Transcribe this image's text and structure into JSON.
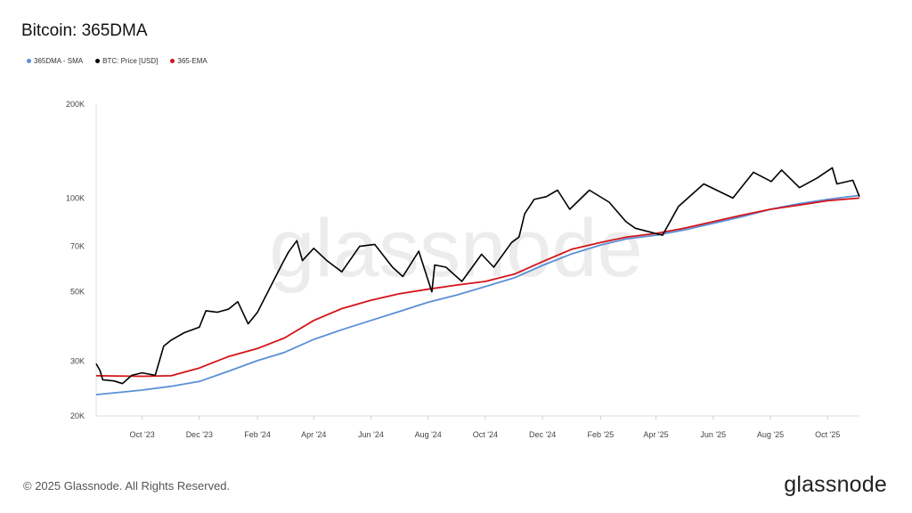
{
  "header": {
    "title": "Bitcoin: 365DMA"
  },
  "footer": {
    "copyright": "© 2025 Glassnode. All Rights Reserved.",
    "logo": "glassnode",
    "watermark": "glassnode"
  },
  "chart_data": {
    "type": "line",
    "title": "Bitcoin: 365DMA",
    "yscale": "log",
    "ylim": [
      20000,
      200000
    ],
    "xlim": [
      "2023-08-13",
      "2025-11-04"
    ],
    "yticks": [
      {
        "v": 20000,
        "label": "20K"
      },
      {
        "v": 30000,
        "label": "30K"
      },
      {
        "v": 50000,
        "label": "50K"
      },
      {
        "v": 70000,
        "label": "70K"
      },
      {
        "v": 100000,
        "label": "100K"
      },
      {
        "v": 200000,
        "label": "200K"
      }
    ],
    "xticks": [
      {
        "d": "2023-10-01",
        "label": "Oct '23"
      },
      {
        "d": "2023-12-01",
        "label": "Dec '23"
      },
      {
        "d": "2024-02-01",
        "label": "Feb '24"
      },
      {
        "d": "2024-04-01",
        "label": "Apr '24"
      },
      {
        "d": "2024-06-01",
        "label": "Jun '24"
      },
      {
        "d": "2024-08-01",
        "label": "Aug '24"
      },
      {
        "d": "2024-10-01",
        "label": "Oct '24"
      },
      {
        "d": "2024-12-01",
        "label": "Dec '24"
      },
      {
        "d": "2025-02-01",
        "label": "Feb '25"
      },
      {
        "d": "2025-04-01",
        "label": "Apr '25"
      },
      {
        "d": "2025-06-01",
        "label": "Jun '25"
      },
      {
        "d": "2025-08-01",
        "label": "Aug '25"
      },
      {
        "d": "2025-10-01",
        "label": "Oct '25"
      }
    ],
    "legend_position": "top-left",
    "grid": false,
    "series": [
      {
        "name": "365DMA - SMA",
        "color": "#5b8fd6",
        "points": [
          [
            "2023-08-13",
            23400
          ],
          [
            "2023-10-01",
            24200
          ],
          [
            "2023-11-01",
            24900
          ],
          [
            "2023-12-01",
            25800
          ],
          [
            "2024-01-01",
            27800
          ],
          [
            "2024-02-01",
            30100
          ],
          [
            "2024-03-01",
            32000
          ],
          [
            "2024-04-01",
            35200
          ],
          [
            "2024-05-01",
            37800
          ],
          [
            "2024-06-01",
            40500
          ],
          [
            "2024-07-01",
            43200
          ],
          [
            "2024-08-01",
            46300
          ],
          [
            "2024-09-01",
            48900
          ],
          [
            "2024-10-01",
            52000
          ],
          [
            "2024-11-01",
            55500
          ],
          [
            "2024-12-01",
            60800
          ],
          [
            "2025-01-01",
            66200
          ],
          [
            "2025-02-01",
            70700
          ],
          [
            "2025-03-01",
            74000
          ],
          [
            "2025-04-01",
            76000
          ],
          [
            "2025-05-01",
            79000
          ],
          [
            "2025-06-01",
            83000
          ],
          [
            "2025-07-01",
            87000
          ],
          [
            "2025-08-01",
            92000
          ],
          [
            "2025-09-01",
            96000
          ],
          [
            "2025-10-01",
            99000
          ],
          [
            "2025-11-04",
            102000
          ]
        ]
      },
      {
        "name": "BTC: Price [USD]",
        "color": "#000000",
        "points": [
          [
            "2023-08-13",
            29400
          ],
          [
            "2023-08-17",
            28000
          ],
          [
            "2023-08-20",
            26100
          ],
          [
            "2023-09-01",
            25900
          ],
          [
            "2023-09-10",
            25400
          ],
          [
            "2023-09-20",
            27000
          ],
          [
            "2023-10-01",
            27500
          ],
          [
            "2023-10-15",
            27000
          ],
          [
            "2023-10-24",
            33500
          ],
          [
            "2023-11-01",
            35000
          ],
          [
            "2023-11-15",
            37000
          ],
          [
            "2023-12-01",
            38500
          ],
          [
            "2023-12-08",
            43500
          ],
          [
            "2023-12-20",
            43000
          ],
          [
            "2024-01-01",
            44000
          ],
          [
            "2024-01-11",
            46500
          ],
          [
            "2024-01-22",
            39500
          ],
          [
            "2024-02-01",
            43000
          ],
          [
            "2024-02-15",
            52000
          ],
          [
            "2024-02-28",
            62000
          ],
          [
            "2024-03-05",
            67000
          ],
          [
            "2024-03-14",
            73000
          ],
          [
            "2024-03-20",
            63000
          ],
          [
            "2024-04-01",
            69000
          ],
          [
            "2024-04-15",
            63000
          ],
          [
            "2024-05-01",
            58000
          ],
          [
            "2024-05-20",
            70000
          ],
          [
            "2024-06-05",
            71000
          ],
          [
            "2024-06-24",
            60000
          ],
          [
            "2024-07-05",
            56000
          ],
          [
            "2024-07-22",
            67500
          ],
          [
            "2024-08-05",
            50000
          ],
          [
            "2024-08-08",
            61000
          ],
          [
            "2024-08-20",
            60000
          ],
          [
            "2024-09-06",
            54000
          ],
          [
            "2024-09-27",
            66000
          ],
          [
            "2024-10-10",
            60000
          ],
          [
            "2024-10-29",
            72000
          ],
          [
            "2024-11-06",
            75000
          ],
          [
            "2024-11-12",
            89000
          ],
          [
            "2024-11-22",
            99000
          ],
          [
            "2024-12-05",
            101000
          ],
          [
            "2024-12-17",
            106000
          ],
          [
            "2024-12-30",
            92000
          ],
          [
            "2025-01-20",
            106000
          ],
          [
            "2025-02-10",
            97000
          ],
          [
            "2025-02-28",
            84000
          ],
          [
            "2025-03-10",
            80000
          ],
          [
            "2025-04-08",
            76000
          ],
          [
            "2025-04-25",
            94000
          ],
          [
            "2025-05-22",
            111000
          ],
          [
            "2025-06-22",
            100000
          ],
          [
            "2025-07-14",
            121000
          ],
          [
            "2025-08-02",
            113000
          ],
          [
            "2025-08-13",
            123000
          ],
          [
            "2025-09-01",
            108000
          ],
          [
            "2025-09-20",
            116000
          ],
          [
            "2025-10-06",
            125000
          ],
          [
            "2025-10-11",
            111000
          ],
          [
            "2025-10-28",
            114000
          ],
          [
            "2025-11-04",
            101000
          ]
        ]
      },
      {
        "name": "365-EMA",
        "color": "#d3141a",
        "points": [
          [
            "2023-08-13",
            26900
          ],
          [
            "2023-10-01",
            26800
          ],
          [
            "2023-11-01",
            26900
          ],
          [
            "2023-12-01",
            28500
          ],
          [
            "2024-01-01",
            31000
          ],
          [
            "2024-02-01",
            32900
          ],
          [
            "2024-03-01",
            35600
          ],
          [
            "2024-04-01",
            40500
          ],
          [
            "2024-05-01",
            44200
          ],
          [
            "2024-06-01",
            47000
          ],
          [
            "2024-07-01",
            49300
          ],
          [
            "2024-08-01",
            51000
          ],
          [
            "2024-09-01",
            52600
          ],
          [
            "2024-10-01",
            54000
          ],
          [
            "2024-11-01",
            57000
          ],
          [
            "2024-12-01",
            62500
          ],
          [
            "2025-01-01",
            68500
          ],
          [
            "2025-02-01",
            72000
          ],
          [
            "2025-03-01",
            75000
          ],
          [
            "2025-04-01",
            77000
          ],
          [
            "2025-05-01",
            80000
          ],
          [
            "2025-06-01",
            84000
          ],
          [
            "2025-07-01",
            88000
          ],
          [
            "2025-08-01",
            92000
          ],
          [
            "2025-09-01",
            95000
          ],
          [
            "2025-10-01",
            98000
          ],
          [
            "2025-11-04",
            100000
          ]
        ]
      }
    ]
  }
}
